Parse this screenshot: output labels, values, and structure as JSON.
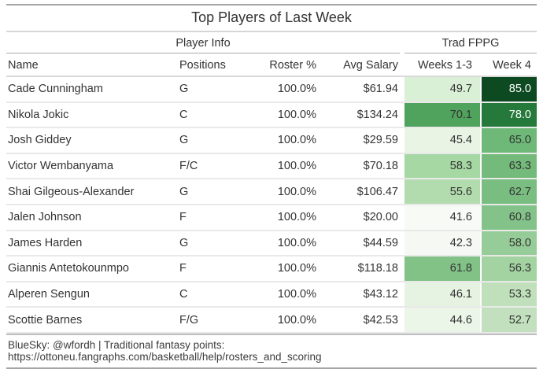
{
  "title": "Top Players of Last Week",
  "groups": {
    "player_info": "Player Info",
    "trad_fppg": "Trad FPPG"
  },
  "columns": {
    "name": "Name",
    "positions": "Positions",
    "roster": "Roster %",
    "salary": "Avg Salary",
    "weeks13": "Weeks 1-3",
    "week4": "Week 4"
  },
  "rows": [
    {
      "name": "Cade Cunningham",
      "positions": "G",
      "roster": "100.0%",
      "salary": "$61.94",
      "weeks13": "49.7",
      "week4": "85.0",
      "weeks13_bg": "#d9efd6",
      "weeks13_fg": "#333333",
      "week4_bg": "#0d4a21",
      "week4_fg": "#ffffff"
    },
    {
      "name": "Nikola Jokic",
      "positions": "C",
      "roster": "100.0%",
      "salary": "$134.24",
      "weeks13": "70.1",
      "week4": "78.0",
      "weeks13_bg": "#50a35c",
      "weeks13_fg": "#333333",
      "week4_bg": "#25793a",
      "week4_fg": "#ffffff"
    },
    {
      "name": "Josh Giddey",
      "positions": "G",
      "roster": "100.0%",
      "salary": "$29.59",
      "weeks13": "45.4",
      "week4": "65.0",
      "weeks13_bg": "#e9f4e5",
      "weeks13_fg": "#333333",
      "week4_bg": "#6eb978",
      "week4_fg": "#333333"
    },
    {
      "name": "Victor Wembanyama",
      "positions": "F/C",
      "roster": "100.0%",
      "salary": "$70.18",
      "weeks13": "58.3",
      "week4": "63.3",
      "weeks13_bg": "#a5d8a2",
      "weeks13_fg": "#333333",
      "week4_bg": "#74bb7b",
      "week4_fg": "#333333"
    },
    {
      "name": "Shai Gilgeous-Alexander",
      "positions": "G",
      "roster": "100.0%",
      "salary": "$106.47",
      "weeks13": "55.6",
      "week4": "62.7",
      "weeks13_bg": "#b3dcae",
      "weeks13_fg": "#333333",
      "week4_bg": "#79bd80",
      "week4_fg": "#333333"
    },
    {
      "name": "Jalen Johnson",
      "positions": "F",
      "roster": "100.0%",
      "salary": "$20.00",
      "weeks13": "41.6",
      "week4": "60.8",
      "weeks13_bg": "#f7faf5",
      "weeks13_fg": "#333333",
      "week4_bg": "#83c389",
      "week4_fg": "#333333"
    },
    {
      "name": "James Harden",
      "positions": "G",
      "roster": "100.0%",
      "salary": "$44.59",
      "weeks13": "42.3",
      "week4": "58.0",
      "weeks13_bg": "#f5f8f3",
      "weeks13_fg": "#333333",
      "week4_bg": "#96cc97",
      "week4_fg": "#333333"
    },
    {
      "name": "Giannis Antetokounmpo",
      "positions": "F",
      "roster": "100.0%",
      "salary": "$118.18",
      "weeks13": "61.8",
      "week4": "56.3",
      "weeks13_bg": "#82c287",
      "weeks13_fg": "#333333",
      "week4_bg": "#a2d3a1",
      "week4_fg": "#333333"
    },
    {
      "name": "Alperen Sengun",
      "positions": "C",
      "roster": "100.0%",
      "salary": "$43.12",
      "weeks13": "46.1",
      "week4": "53.3",
      "weeks13_bg": "#e6f3e2",
      "weeks13_fg": "#333333",
      "week4_bg": "#bfe0ba",
      "week4_fg": "#333333"
    },
    {
      "name": "Scottie Barnes",
      "positions": "F/G",
      "roster": "100.0%",
      "salary": "$42.53",
      "weeks13": "44.6",
      "week4": "52.7",
      "weeks13_bg": "#ebf5e8",
      "weeks13_fg": "#333333",
      "week4_bg": "#c2e0bd",
      "week4_fg": "#333333"
    }
  ],
  "footer": "BlueSky: @wfordh | Traditional fantasy points: https://ottoneu.fangraphs.com/basketball/help/rosters_and_scoring",
  "colors": {
    "rule_dark": "#a6a6a6",
    "rule_light": "#d9d9d9",
    "row_separator": "#e9e9e9",
    "heat_min": "#f7faf5",
    "heat_max": "#0d4a21",
    "text": "#333333"
  },
  "chart_data": {
    "type": "table",
    "title": "Top Players of Last Week",
    "column_groups": [
      {
        "label": "Player Info",
        "columns": [
          "Name",
          "Positions",
          "Roster %",
          "Avg Salary"
        ]
      },
      {
        "label": "Trad FPPG",
        "columns": [
          "Weeks 1-3",
          "Week 4"
        ]
      }
    ],
    "columns": [
      "Name",
      "Positions",
      "Roster %",
      "Avg Salary",
      "Weeks 1-3",
      "Week 4"
    ],
    "rows": [
      [
        "Cade Cunningham",
        "G",
        "100.0%",
        "$61.94",
        49.7,
        85.0
      ],
      [
        "Nikola Jokic",
        "C",
        "100.0%",
        "$134.24",
        70.1,
        78.0
      ],
      [
        "Josh Giddey",
        "G",
        "100.0%",
        "$29.59",
        45.4,
        65.0
      ],
      [
        "Victor Wembanyama",
        "F/C",
        "100.0%",
        "$70.18",
        58.3,
        63.3
      ],
      [
        "Shai Gilgeous-Alexander",
        "G",
        "100.0%",
        "$106.47",
        55.6,
        62.7
      ],
      [
        "Jalen Johnson",
        "F",
        "100.0%",
        "$20.00",
        41.6,
        60.8
      ],
      [
        "James Harden",
        "G",
        "100.0%",
        "$44.59",
        42.3,
        58.0
      ],
      [
        "Giannis Antetokounmpo",
        "F",
        "100.0%",
        "$118.18",
        61.8,
        56.3
      ],
      [
        "Alperen Sengun",
        "C",
        "100.0%",
        "$43.12",
        46.1,
        53.3
      ],
      [
        "Scottie Barnes",
        "F/G",
        "100.0%",
        "$42.53",
        44.6,
        52.7
      ]
    ],
    "heatmap_columns": [
      "Weeks 1-3",
      "Week 4"
    ],
    "heatmap_color_low": "#f7faf5",
    "heatmap_color_high": "#0d4a21",
    "source_note": "BlueSky: @wfordh | Traditional fantasy points: https://ottoneu.fangraphs.com/basketball/help/rosters_and_scoring"
  }
}
